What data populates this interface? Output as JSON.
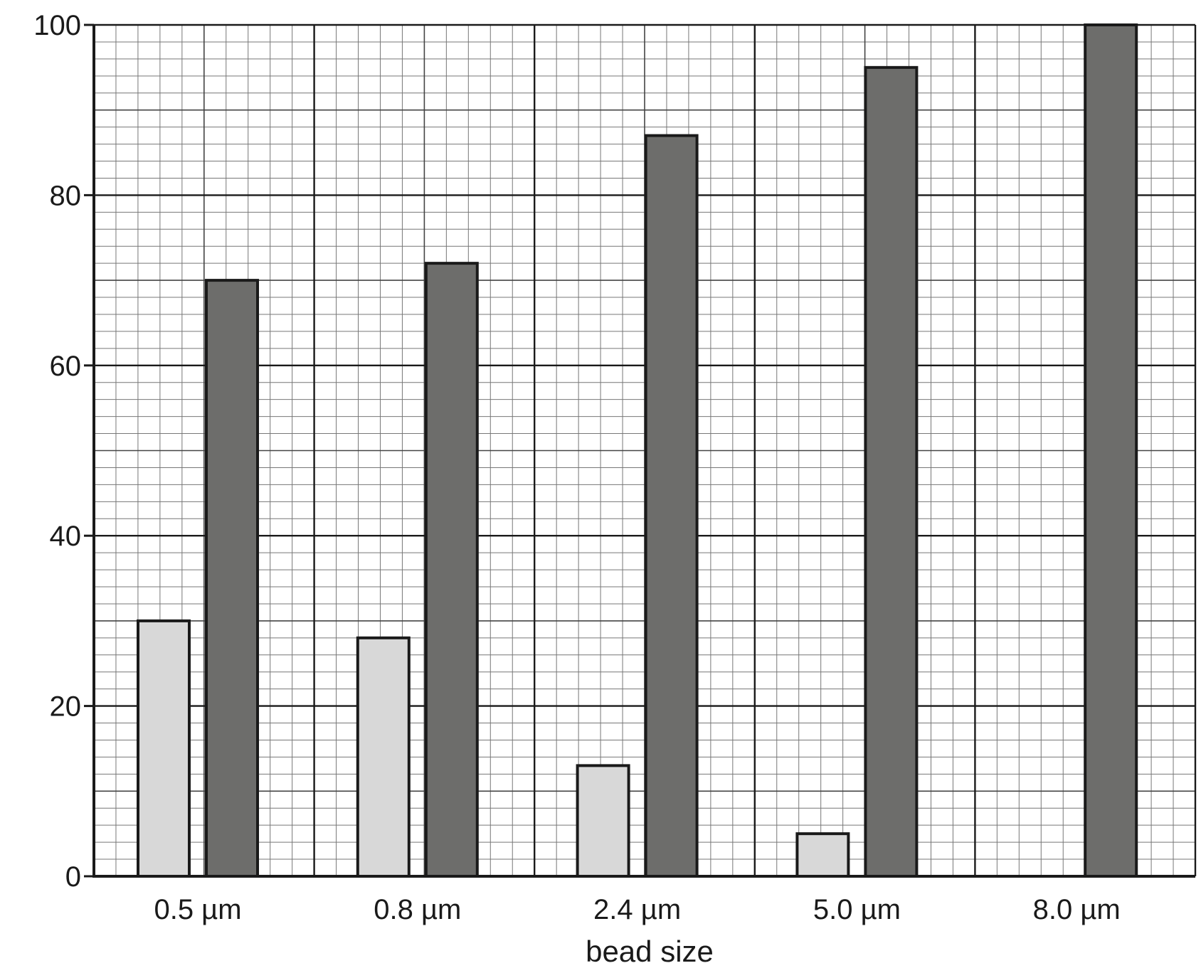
{
  "chart_data": {
    "type": "bar",
    "title": "",
    "xlabel": "bead size",
    "ylabel": "",
    "categories": [
      "0.5 µm",
      "0.8 µm",
      "2.4 µm",
      "5.0 µm",
      "8.0 µm"
    ],
    "series": [
      {
        "values": [
          30,
          28,
          13,
          5,
          0
        ],
        "color": "#d8d8d8"
      },
      {
        "values": [
          70,
          72,
          87,
          95,
          100
        ],
        "color": "#6d6d6b"
      }
    ],
    "ylim": [
      0,
      100
    ],
    "yticks": [
      "0",
      "20",
      "40",
      "60",
      "80",
      "100"
    ],
    "grid": true,
    "legend": "none"
  }
}
